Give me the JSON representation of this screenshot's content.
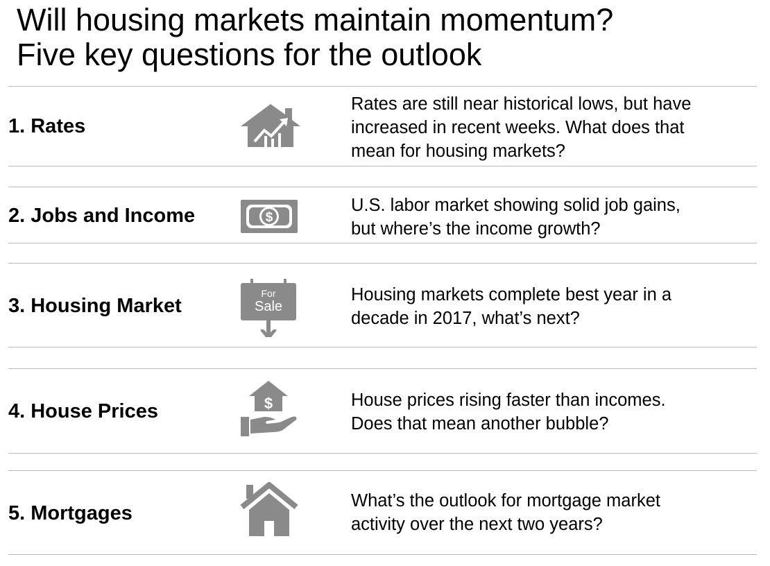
{
  "title": {
    "line1": "Will housing markets maintain momentum?",
    "line2": "Five key questions for the outlook"
  },
  "rows": [
    {
      "label": "1. Rates",
      "icon": "house-chart-icon",
      "desc": [
        "Rates are still near historical lows, but have",
        "increased in recent weeks.  What does that",
        "mean for housing markets?"
      ]
    },
    {
      "label": "2. Jobs and Income",
      "icon": "dollar-bill-icon",
      "desc": [
        "U.S. labor market showing solid job gains,",
        "but where’s the income growth?"
      ]
    },
    {
      "label": "3. Housing Market",
      "icon": "for-sale-sign-icon",
      "sign_top": "For",
      "sign_bottom": "Sale",
      "desc": [
        "Housing markets complete best year in a",
        "decade in 2017, what’s next?"
      ]
    },
    {
      "label": "4. House Prices",
      "icon": "hand-house-dollar-icon",
      "desc": [
        "House prices rising faster than incomes.",
        "Does that mean another bubble?"
      ]
    },
    {
      "label": "5. Mortgages",
      "icon": "house-icon",
      "desc": [
        "What’s the outlook for mortgage market",
        "activity over the next two years?"
      ]
    }
  ],
  "colors": {
    "icon": "#8a8a8a",
    "rule": "#b8b8b8",
    "text": "#000000"
  }
}
